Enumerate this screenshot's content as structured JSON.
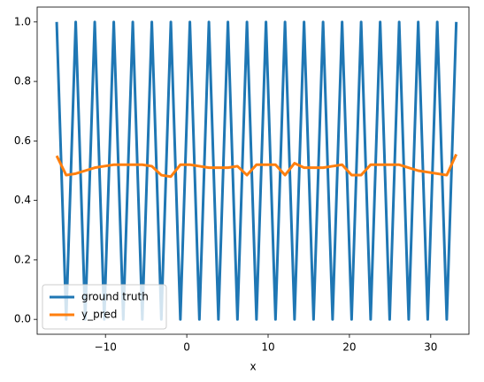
{
  "chart_data": {
    "type": "line",
    "x_label": "x",
    "x": [
      -16,
      -14.83,
      -13.66,
      -12.49,
      -11.32,
      -10.15,
      -8.98,
      -7.81,
      -6.64,
      -5.47,
      -4.3,
      -3.13,
      -1.96,
      -0.79,
      0.38,
      1.55,
      2.72,
      3.89,
      5.06,
      6.23,
      7.4,
      8.57,
      9.74,
      10.91,
      12.08,
      13.25,
      14.42,
      15.59,
      16.76,
      17.93,
      19.1,
      20.27,
      21.44,
      22.61,
      23.78,
      24.95,
      26.12,
      27.29,
      28.46,
      29.63,
      30.8,
      31.97,
      33.14
    ],
    "series": [
      {
        "name": "ground truth",
        "color": "#1f77b4",
        "values": [
          1,
          0,
          1,
          0,
          1,
          0,
          1,
          0,
          1,
          0,
          1,
          0,
          1,
          0,
          1,
          0,
          1,
          0,
          1,
          0,
          1,
          0,
          1,
          0,
          1,
          0,
          1,
          0,
          1,
          0,
          1,
          0,
          1,
          0,
          1,
          0,
          1,
          0,
          1,
          0,
          1,
          0,
          1
        ]
      },
      {
        "name": "y_pred",
        "color": "#ff7f0e",
        "values": [
          0.55,
          0.485,
          0.49,
          0.5,
          0.51,
          0.515,
          0.52,
          0.52,
          0.52,
          0.52,
          0.515,
          0.485,
          0.48,
          0.52,
          0.52,
          0.515,
          0.51,
          0.51,
          0.51,
          0.515,
          0.485,
          0.52,
          0.52,
          0.52,
          0.485,
          0.525,
          0.51,
          0.51,
          0.51,
          0.515,
          0.52,
          0.485,
          0.485,
          0.52,
          0.52,
          0.52,
          0.52,
          0.51,
          0.5,
          0.495,
          0.49,
          0.485,
          0.555
        ]
      }
    ],
    "xlim": [
      -18.4,
      34.7
    ],
    "xticks": [
      {
        "value": -10,
        "label": "−10"
      },
      0,
      10,
      20,
      30
    ],
    "ylim": [
      -0.05,
      1.05
    ],
    "yticks": [
      {
        "value": 0,
        "label": "0.0"
      },
      {
        "value": 0.2,
        "label": "0.2"
      },
      {
        "value": 0.4,
        "label": "0.4"
      },
      {
        "value": 0.6,
        "label": "0.6"
      },
      {
        "value": 0.8,
        "label": "0.8"
      },
      {
        "value": 1,
        "label": "1.0"
      }
    ],
    "legend": "lower left"
  }
}
